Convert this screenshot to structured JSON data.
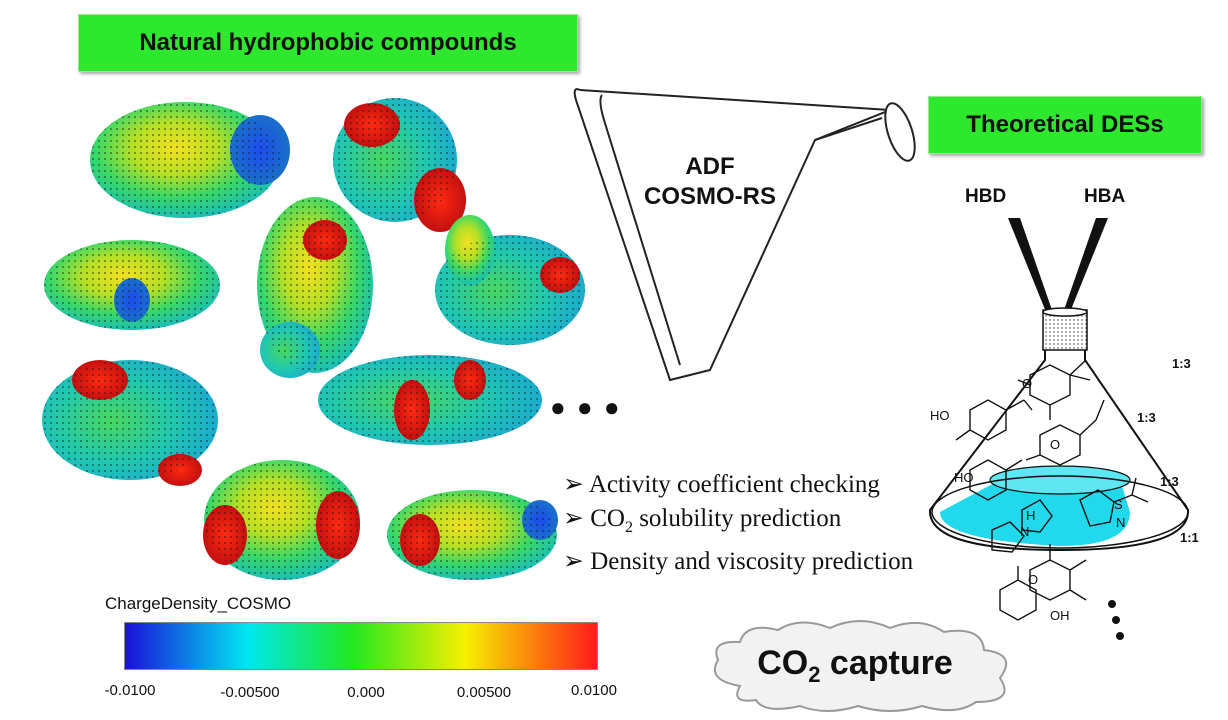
{
  "header": {
    "natural_label": "Natural hydrophobic compounds",
    "theoretical_label": "Theoretical DESs"
  },
  "funnel": {
    "line1": "ADF",
    "line2": "COSMO-RS"
  },
  "ellipsis": "● ● ●",
  "bullets": {
    "marker": "➢",
    "item1": "Activity coefficient checking",
    "item2_pre": "CO",
    "item2_sub": "2",
    "item2_post": " solubility prediction",
    "item3": "Density and viscosity prediction"
  },
  "colorbar": {
    "title": "ChargeDensity_COSMO",
    "ticks": [
      "-0.0100",
      "-0.00500",
      "0.000",
      "0.00500",
      "0.0100"
    ],
    "colors": [
      "#1a10d8",
      "#00e8f0",
      "#20e820",
      "#f6f000",
      "#ff1a1a"
    ]
  },
  "flask": {
    "hbd": "HBD",
    "hba": "HBA",
    "ratios": [
      "1:3",
      "1:3",
      "1:3",
      "1:1"
    ],
    "atoms": [
      "HO",
      "O",
      "HO",
      "O",
      "S",
      "N",
      "H",
      "N",
      "OH",
      "O"
    ],
    "liquid_color": "#22d8ec"
  },
  "cloud": {
    "pre": "CO",
    "sub": "2",
    "post": " capture"
  }
}
